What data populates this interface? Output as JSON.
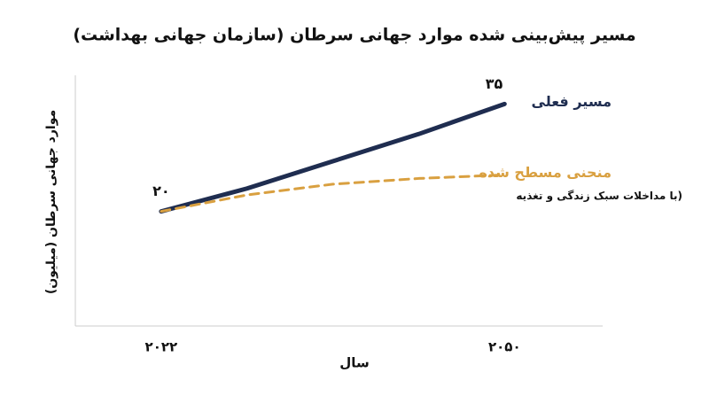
{
  "chart_data": {
    "type": "line",
    "title": "مسیر پیش‌بینی شده موارد جهانی سرطان (سازمان جهانی بهداشت)",
    "x_label": "سال",
    "y_label": "موارد جهانی سرطان (میلیون)",
    "x": [
      2022,
      2029,
      2036,
      2043,
      2050
    ],
    "xlim": [
      2015,
      2058
    ],
    "xticks": [
      {
        "value": 2022,
        "label": "۲۰۲۲"
      },
      {
        "value": 2050,
        "label": "۲۰۵۰"
      }
    ],
    "ylim": [
      4,
      39
    ],
    "series": [
      {
        "name": "مسیر فعلی",
        "color": "#1f2d50",
        "dashed": false,
        "values": [
          20,
          23.2,
          27,
          30.8,
          35
        ],
        "value_labels": [
          "۲۰",
          null,
          null,
          null,
          "۳۵"
        ]
      },
      {
        "name": "منحنی مسطح شده",
        "color": "#d9a040",
        "dashed": true,
        "values": [
          20,
          22.3,
          23.8,
          24.6,
          25.1
        ],
        "note": "(با مداخلات سبک زندگی و تغذیه"
      }
    ]
  }
}
